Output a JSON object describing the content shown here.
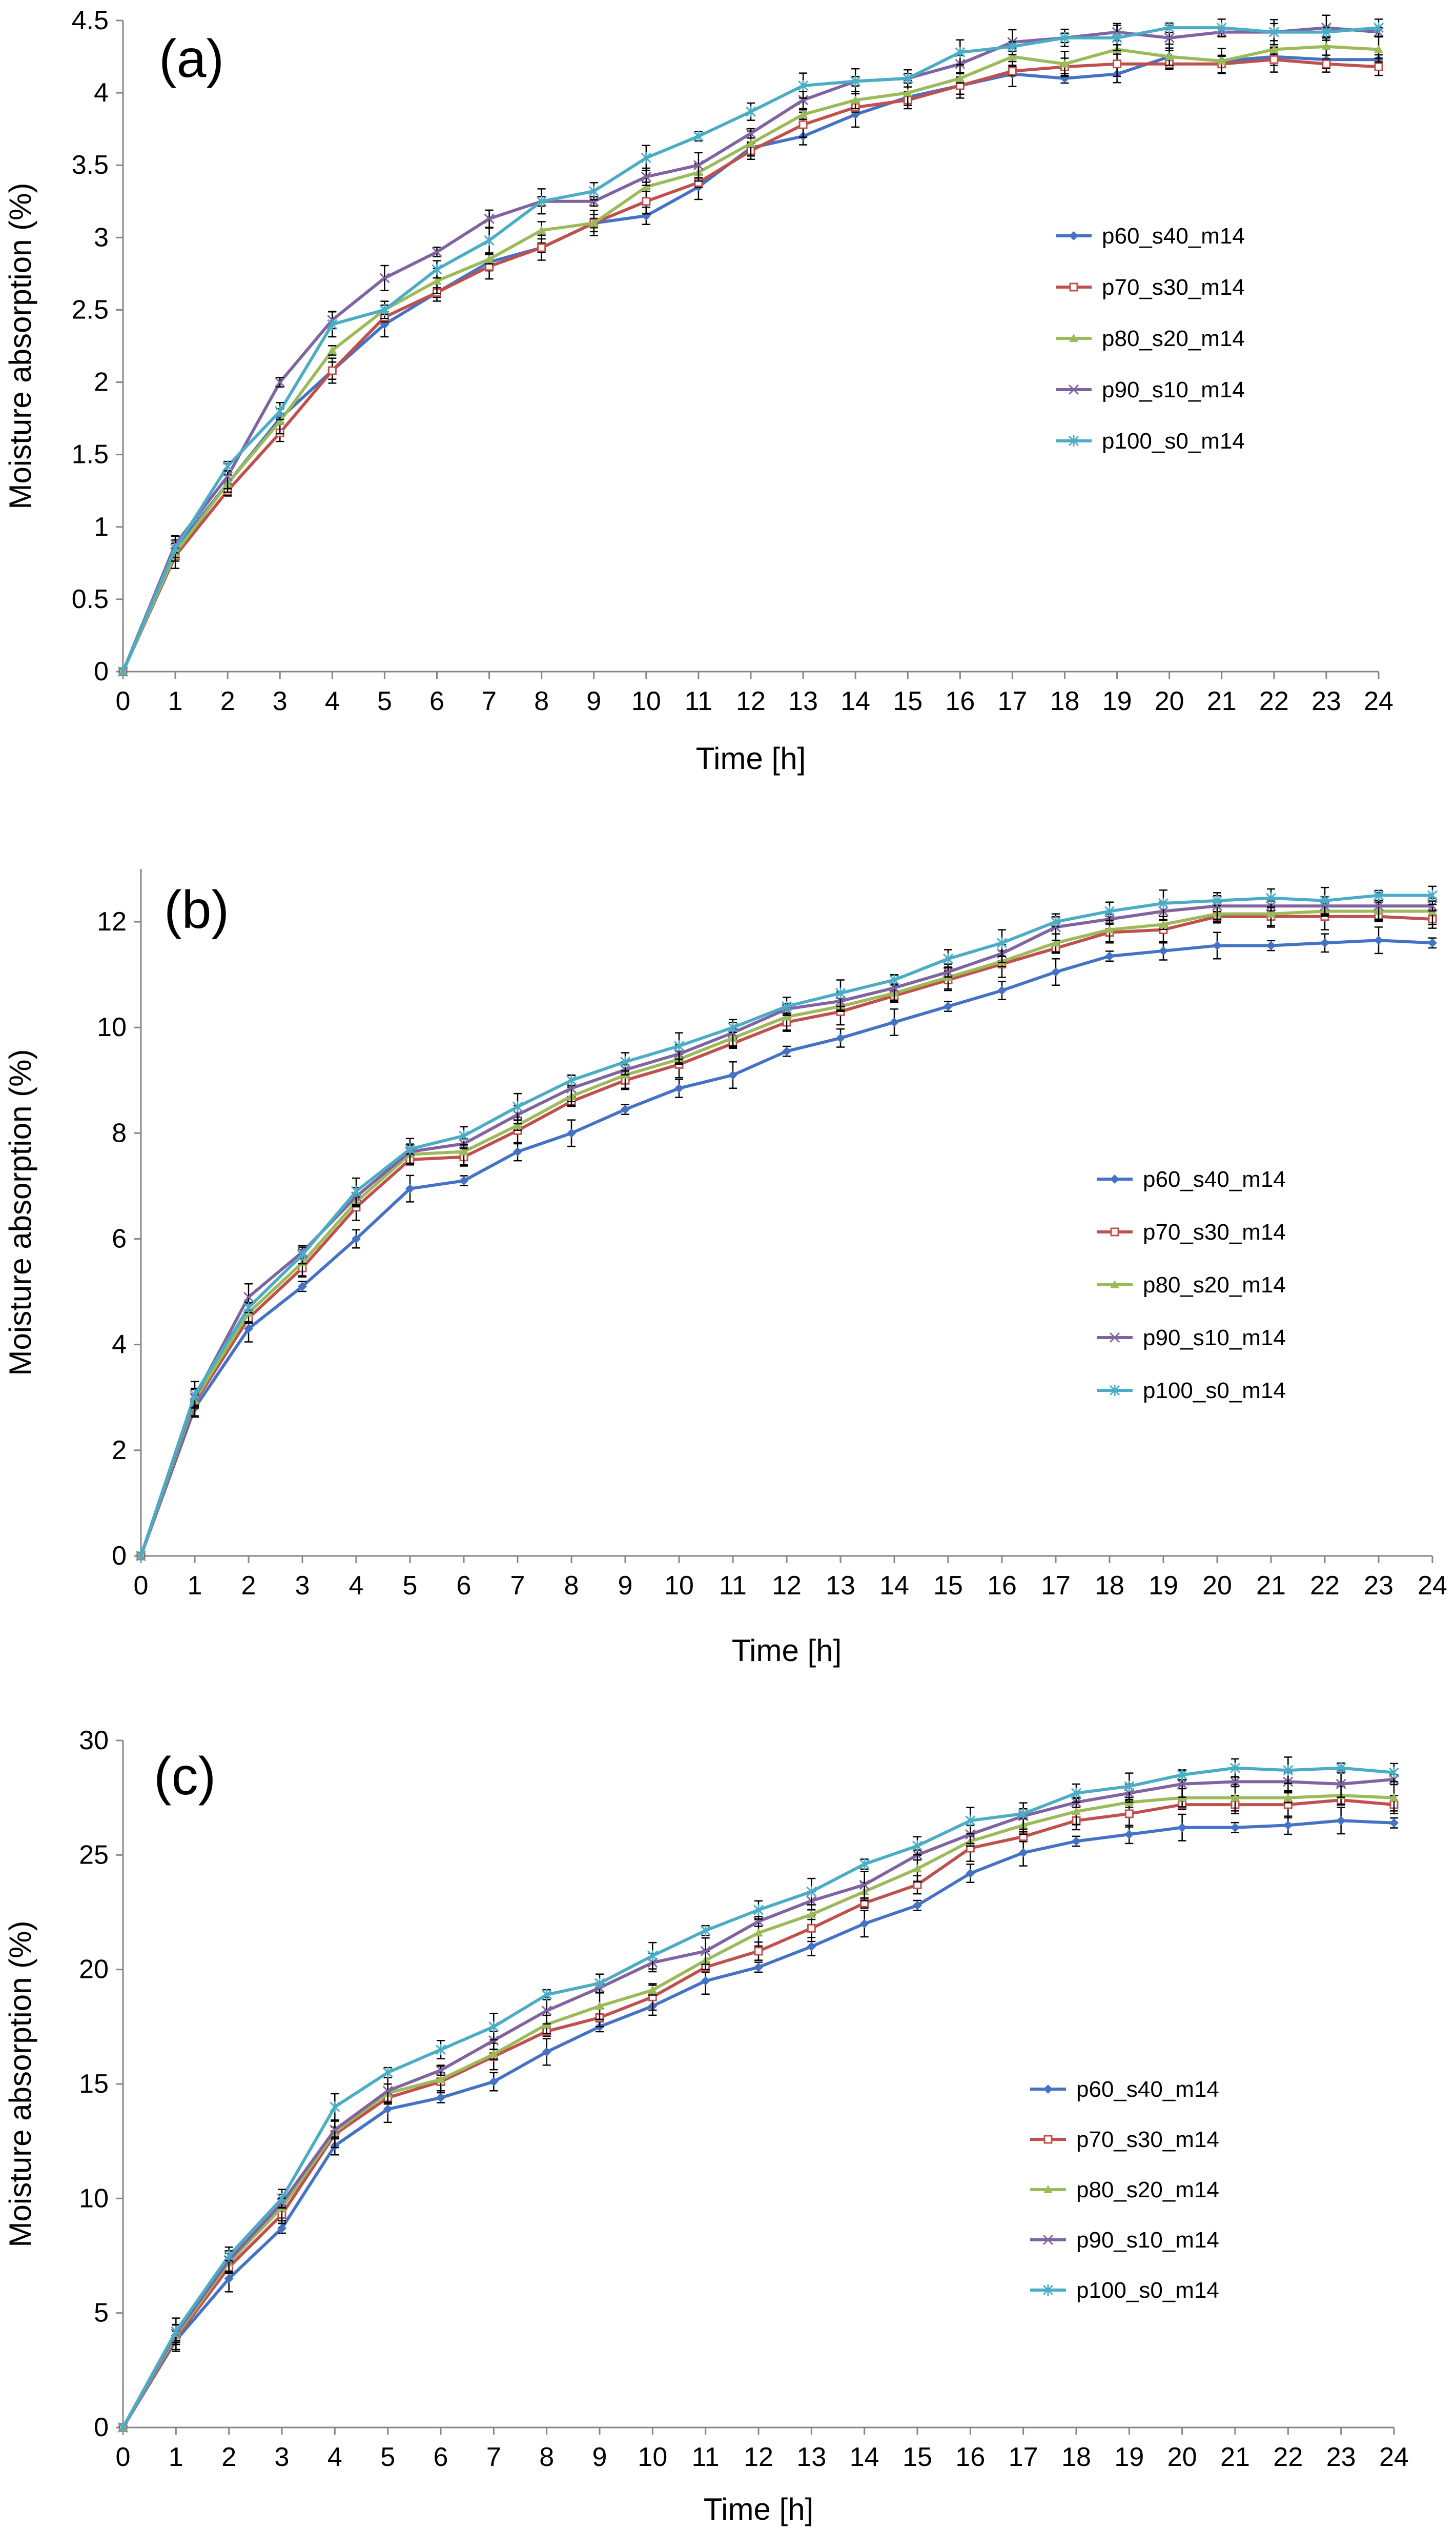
{
  "chart_data": [
    {
      "type": "line",
      "panel_label": "(a)",
      "xlabel": "Time [h]",
      "ylabel": "Moisture absorption (%)",
      "ylim": [
        0,
        4.5
      ],
      "ytick_labels": [
        "0",
        "0.5",
        "1",
        "1.5",
        "2",
        "2.5",
        "3",
        "3.5",
        "4",
        "4.5"
      ],
      "xlim": [
        0,
        24
      ],
      "x": [
        0,
        1,
        2,
        3,
        4,
        5,
        6,
        7,
        8,
        9,
        10,
        11,
        12,
        13,
        14,
        15,
        16,
        17,
        18,
        19,
        20,
        21,
        22,
        23,
        24
      ],
      "x_tick_labels": [
        "0",
        "1",
        "2",
        "3",
        "4",
        "5",
        "6",
        "7",
        "8",
        "9",
        "10",
        "11",
        "12",
        "13",
        "14",
        "15",
        "16",
        "17",
        "18",
        "19",
        "20",
        "21",
        "22",
        "23",
        "24"
      ],
      "legend_position": "center-right",
      "series": [
        {
          "name": "p60_s40_m14",
          "color": "#4472C4",
          "marker": "diamond",
          "values": [
            0,
            0.85,
            1.3,
            1.75,
            2.08,
            2.4,
            2.62,
            2.83,
            2.93,
            3.1,
            3.15,
            3.35,
            3.62,
            3.7,
            3.85,
            3.97,
            4.05,
            4.13,
            4.1,
            4.13,
            4.25,
            4.22,
            4.25,
            4.23,
            4.23
          ]
        },
        {
          "name": "p70_s30_m14",
          "color": "#C0504D",
          "marker": "square",
          "values": [
            0,
            0.8,
            1.25,
            1.65,
            2.08,
            2.45,
            2.62,
            2.8,
            2.93,
            3.1,
            3.25,
            3.38,
            3.6,
            3.78,
            3.9,
            3.95,
            4.05,
            4.15,
            4.18,
            4.2,
            4.2,
            4.2,
            4.23,
            4.2,
            4.18
          ]
        },
        {
          "name": "p80_s20_m14",
          "color": "#9BBB59",
          "marker": "triangle",
          "values": [
            0,
            0.82,
            1.3,
            1.73,
            2.22,
            2.5,
            2.7,
            2.85,
            3.05,
            3.1,
            3.35,
            3.45,
            3.65,
            3.85,
            3.95,
            4.0,
            4.1,
            4.25,
            4.2,
            4.3,
            4.25,
            4.22,
            4.3,
            4.32,
            4.3
          ]
        },
        {
          "name": "p90_s10_m14",
          "color": "#8064A2",
          "marker": "x",
          "values": [
            0,
            0.88,
            1.35,
            2.0,
            2.43,
            2.72,
            2.9,
            3.13,
            3.25,
            3.25,
            3.42,
            3.5,
            3.72,
            3.95,
            4.08,
            4.1,
            4.2,
            4.35,
            4.38,
            4.42,
            4.38,
            4.42,
            4.42,
            4.45,
            4.42
          ]
        },
        {
          "name": "p100_s0_m14",
          "color": "#4BACC6",
          "marker": "asterisk",
          "values": [
            0,
            0.85,
            1.42,
            1.8,
            2.4,
            2.5,
            2.78,
            2.98,
            3.25,
            3.32,
            3.55,
            3.7,
            3.87,
            4.05,
            4.08,
            4.1,
            4.28,
            4.32,
            4.38,
            4.38,
            4.45,
            4.45,
            4.42,
            4.42,
            4.45
          ]
        }
      ]
    },
    {
      "type": "line",
      "panel_label": "(b)",
      "xlabel": "Time [h]",
      "ylabel": "Moisture absorption (%)",
      "ylim": [
        0,
        13
      ],
      "ytick_labels": [
        "0",
        "2",
        "4",
        "6",
        "8",
        "10",
        "12"
      ],
      "xlim": [
        0,
        24
      ],
      "x": [
        0,
        1,
        2,
        3,
        4,
        5,
        6,
        7,
        8,
        9,
        10,
        11,
        12,
        13,
        14,
        15,
        16,
        17,
        18,
        19,
        20,
        21,
        22,
        23,
        24
      ],
      "x_tick_labels": [
        "0",
        "1",
        "2",
        "3",
        "4",
        "5",
        "6",
        "7",
        "8",
        "9",
        "10",
        "11",
        "12",
        "13",
        "14",
        "15",
        "16",
        "17",
        "18",
        "19",
        "20",
        "21",
        "22",
        "23",
        "24"
      ],
      "legend_position": "center-right",
      "series": [
        {
          "name": "p60_s40_m14",
          "color": "#4472C4",
          "marker": "diamond",
          "values": [
            0,
            2.8,
            4.3,
            5.1,
            6.0,
            6.95,
            7.1,
            7.65,
            8.0,
            8.45,
            8.85,
            9.1,
            9.55,
            9.8,
            10.1,
            10.4,
            10.7,
            11.05,
            11.35,
            11.45,
            11.55,
            11.55,
            11.6,
            11.65,
            11.6
          ]
        },
        {
          "name": "p70_s30_m14",
          "color": "#C0504D",
          "marker": "square",
          "values": [
            0,
            2.9,
            4.5,
            5.45,
            6.6,
            7.5,
            7.55,
            8.05,
            8.6,
            9.0,
            9.3,
            9.7,
            10.1,
            10.3,
            10.6,
            10.9,
            11.2,
            11.5,
            11.8,
            11.85,
            12.1,
            12.1,
            12.1,
            12.1,
            12.05
          ]
        },
        {
          "name": "p80_s20_m14",
          "color": "#9BBB59",
          "marker": "triangle",
          "values": [
            0,
            2.95,
            4.6,
            5.55,
            6.7,
            7.6,
            7.65,
            8.15,
            8.7,
            9.1,
            9.4,
            9.8,
            10.2,
            10.4,
            10.65,
            10.95,
            11.25,
            11.6,
            11.85,
            11.95,
            12.15,
            12.15,
            12.2,
            12.2,
            12.2
          ]
        },
        {
          "name": "p90_s10_m14",
          "color": "#8064A2",
          "marker": "x",
          "values": [
            0,
            3.0,
            4.9,
            5.75,
            6.8,
            7.65,
            7.8,
            8.35,
            8.85,
            9.2,
            9.5,
            9.9,
            10.35,
            10.5,
            10.75,
            11.05,
            11.4,
            11.9,
            12.05,
            12.2,
            12.3,
            12.3,
            12.3,
            12.3,
            12.3
          ]
        },
        {
          "name": "p100_s0_m14",
          "color": "#4BACC6",
          "marker": "asterisk",
          "values": [
            0,
            3.05,
            4.7,
            5.7,
            6.9,
            7.7,
            7.95,
            8.5,
            9.0,
            9.35,
            9.65,
            10.0,
            10.4,
            10.65,
            10.9,
            11.3,
            11.6,
            12.0,
            12.2,
            12.35,
            12.4,
            12.45,
            12.4,
            12.5,
            12.5
          ]
        }
      ]
    },
    {
      "type": "line",
      "panel_label": "(c)",
      "xlabel": "Time [h]",
      "ylabel": "Moisture absorption (%)",
      "ylim": [
        0,
        30
      ],
      "ytick_labels": [
        "0",
        "5",
        "10",
        "15",
        "20",
        "25",
        "30"
      ],
      "xlim": [
        0,
        24
      ],
      "x": [
        0,
        1,
        2,
        3,
        4,
        5,
        6,
        7,
        8,
        9,
        10,
        11,
        12,
        13,
        14,
        15,
        16,
        17,
        18,
        19,
        20,
        21,
        22,
        23,
        24
      ],
      "x_tick_labels": [
        "0",
        "1",
        "2",
        "3",
        "4",
        "5",
        "6",
        "7",
        "8",
        "9",
        "10",
        "11",
        "12",
        "13",
        "14",
        "15",
        "16",
        "17",
        "18",
        "19",
        "20",
        "21",
        "22",
        "23",
        "24"
      ],
      "legend_position": "center-right",
      "series": [
        {
          "name": "p60_s40_m14",
          "color": "#4472C4",
          "marker": "diamond",
          "values": [
            0,
            3.8,
            6.5,
            8.7,
            12.3,
            13.9,
            14.4,
            15.1,
            16.4,
            17.5,
            18.4,
            19.5,
            20.1,
            21.0,
            22.0,
            22.8,
            24.2,
            25.1,
            25.6,
            25.9,
            26.2,
            26.2,
            26.3,
            26.5,
            26.4
          ]
        },
        {
          "name": "p70_s30_m14",
          "color": "#C0504D",
          "marker": "square",
          "values": [
            0,
            3.9,
            7.0,
            9.3,
            12.8,
            14.4,
            15.1,
            16.2,
            17.3,
            17.9,
            18.8,
            20.1,
            20.8,
            21.8,
            22.9,
            23.7,
            25.3,
            25.8,
            26.5,
            26.8,
            27.2,
            27.2,
            27.2,
            27.4,
            27.2
          ]
        },
        {
          "name": "p80_s20_m14",
          "color": "#9BBB59",
          "marker": "triangle",
          "values": [
            0,
            4.0,
            7.2,
            9.6,
            12.9,
            14.6,
            15.2,
            16.3,
            17.6,
            18.4,
            19.1,
            20.4,
            21.6,
            22.4,
            23.4,
            24.4,
            25.6,
            26.3,
            26.9,
            27.3,
            27.5,
            27.5,
            27.5,
            27.6,
            27.5
          ]
        },
        {
          "name": "p90_s10_m14",
          "color": "#8064A2",
          "marker": "x",
          "values": [
            0,
            4.1,
            7.3,
            9.8,
            13.0,
            14.7,
            15.6,
            16.9,
            18.2,
            19.2,
            20.3,
            20.8,
            22.1,
            23.0,
            23.7,
            25.0,
            25.9,
            26.7,
            27.3,
            27.7,
            28.1,
            28.2,
            28.2,
            28.1,
            28.3
          ]
        },
        {
          "name": "p100_s0_m14",
          "color": "#4BACC6",
          "marker": "asterisk",
          "values": [
            0,
            4.2,
            7.5,
            10.0,
            14.0,
            15.5,
            16.5,
            17.5,
            18.9,
            19.4,
            20.6,
            21.7,
            22.6,
            23.4,
            24.6,
            25.4,
            26.5,
            26.8,
            27.7,
            28.0,
            28.5,
            28.8,
            28.7,
            28.8,
            28.6
          ]
        }
      ]
    }
  ]
}
